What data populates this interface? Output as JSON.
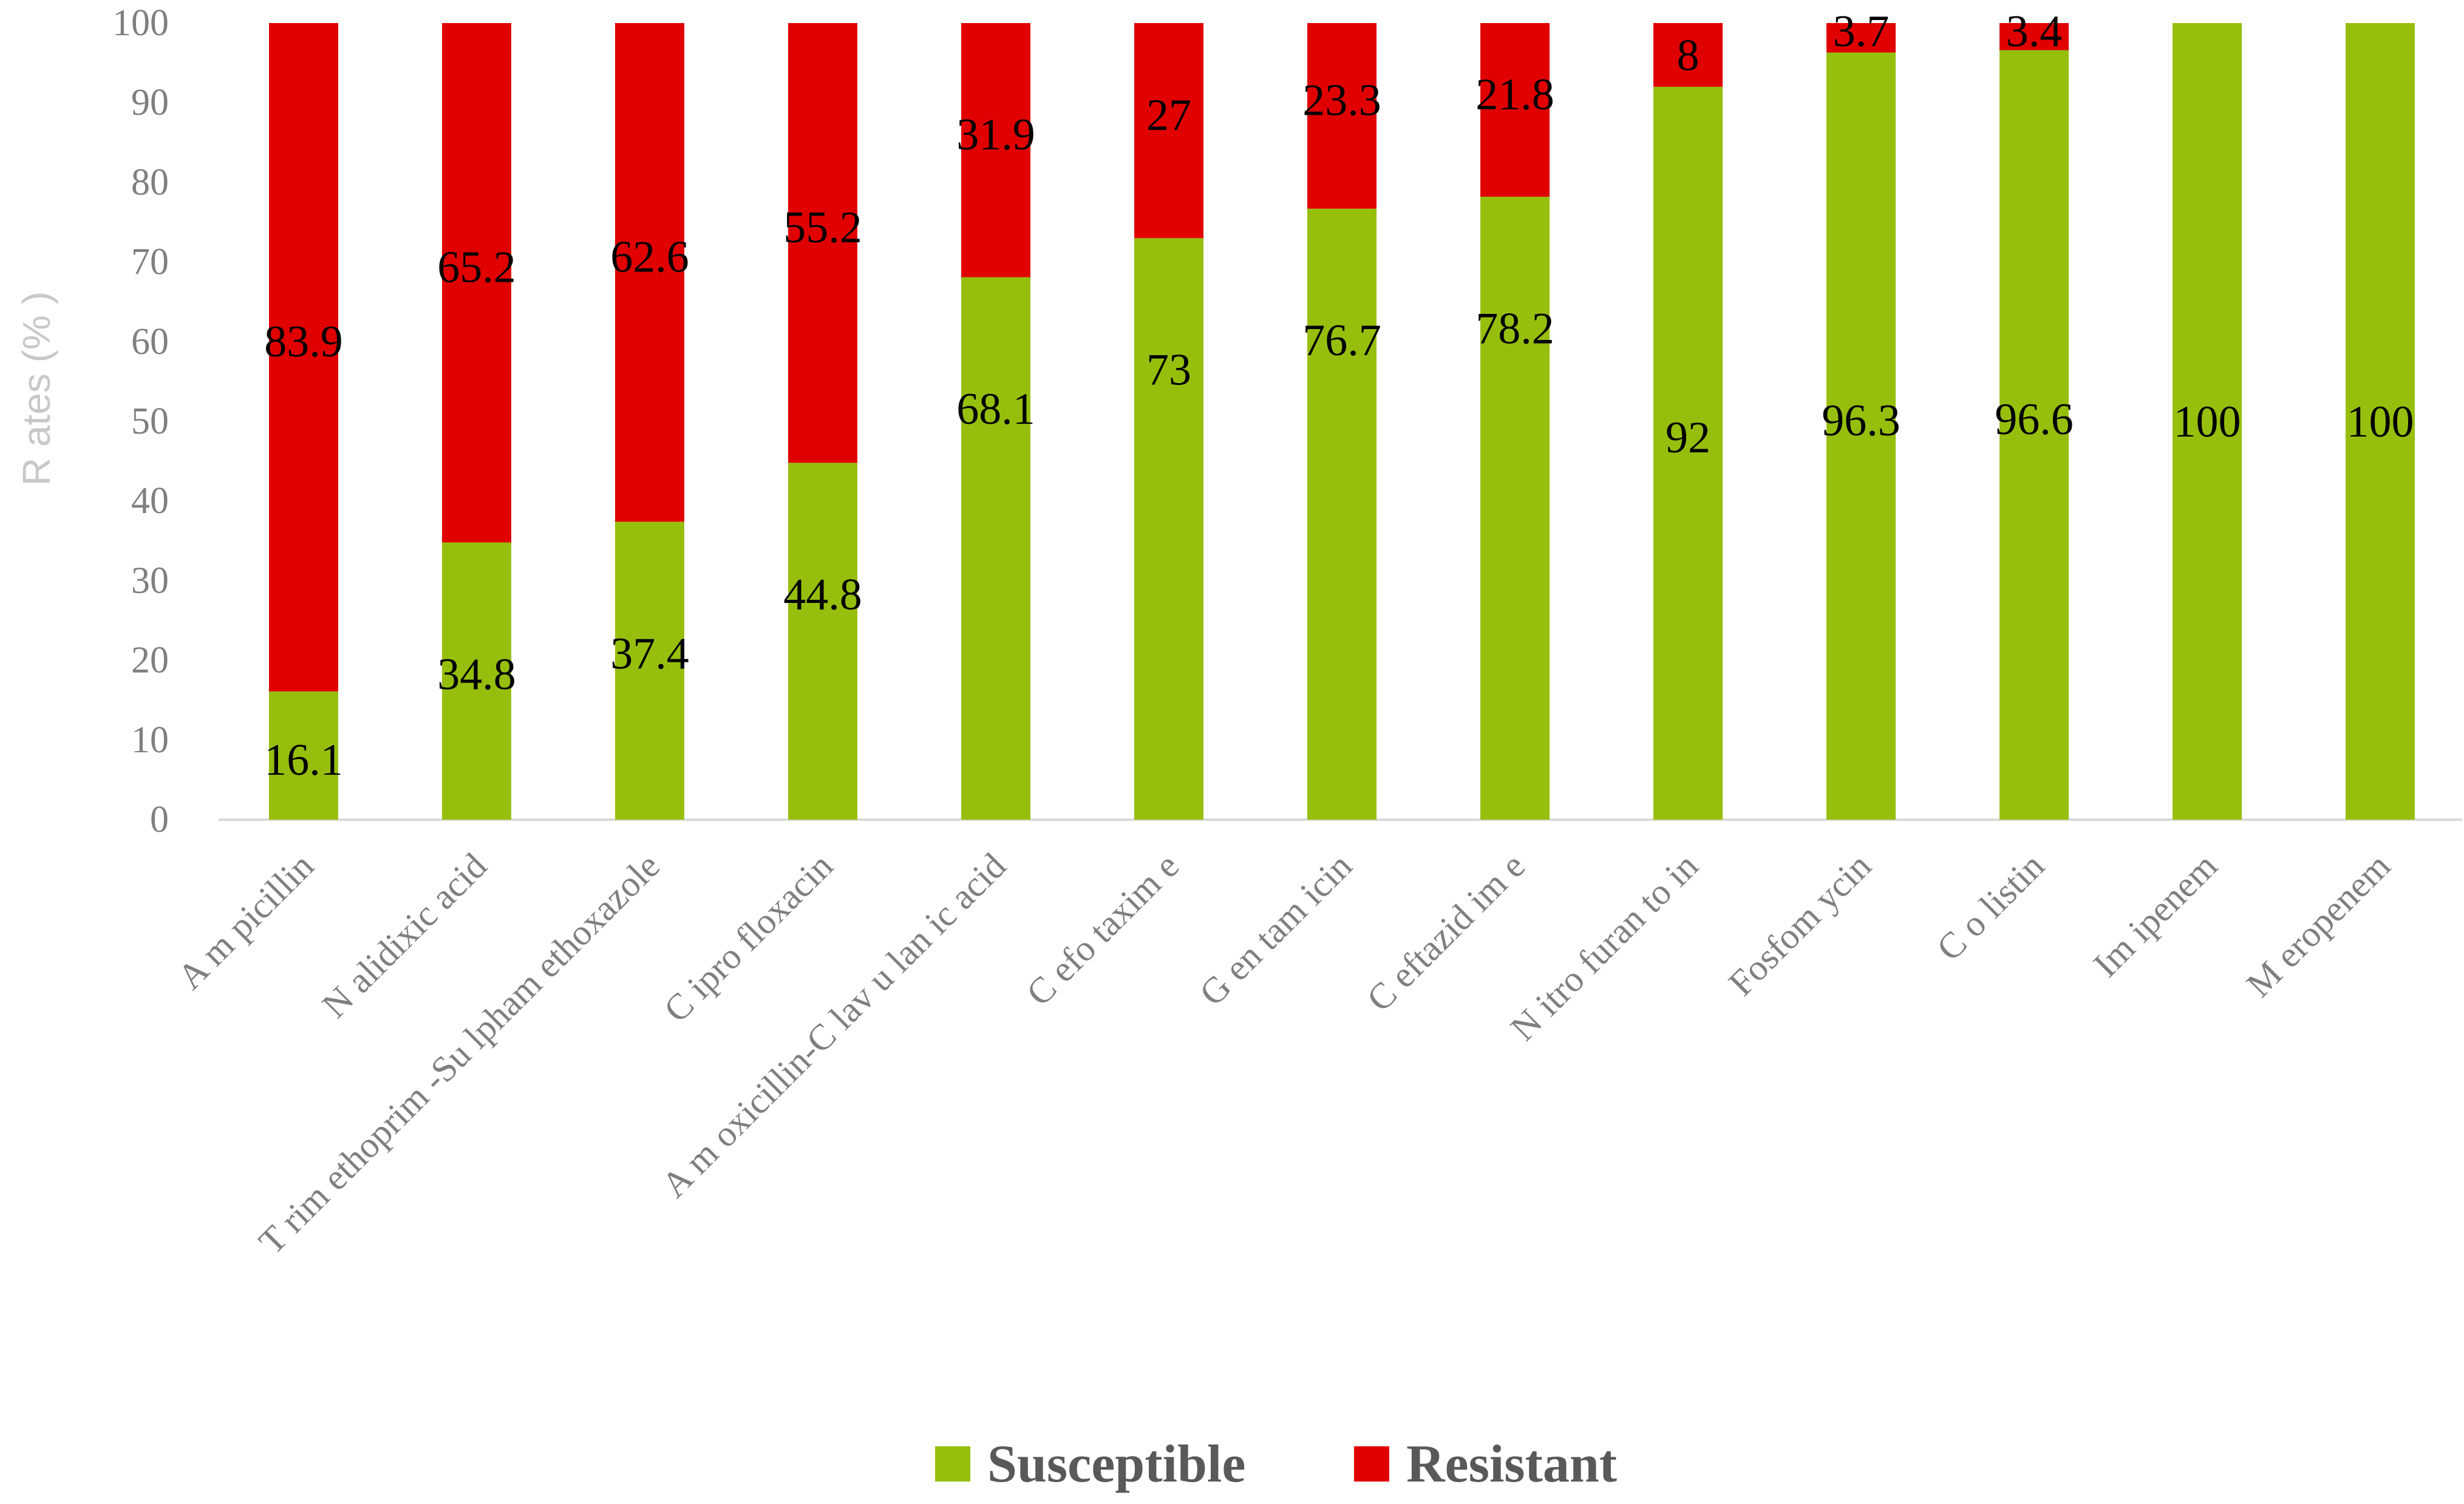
{
  "chart_data": {
    "type": "bar",
    "stacked": true,
    "categories": [
      "A m picillin",
      "N alidixic acid",
      "T rim ethoprim -Su lpham ethoxazole",
      "C ipro floxacin",
      "A m oxicillin-C lav u lan ic acid",
      "C efo taxim e",
      "G en tam icin",
      "C eftazid im e",
      "N itro furan to in",
      "Fosfom ycin",
      "C o listin",
      "Im ipenem",
      "M eropenem"
    ],
    "series": [
      {
        "name": "Susceptible",
        "color": "#96bf0d",
        "values": [
          16.1,
          34.8,
          37.4,
          44.8,
          68.1,
          73,
          76.7,
          78.2,
          92,
          96.3,
          96.6,
          100,
          100
        ]
      },
      {
        "name": "Resistant",
        "color": "#e00000",
        "values": [
          83.9,
          65.2,
          62.6,
          55.2,
          31.9,
          27,
          23.3,
          21.8,
          8,
          3.7,
          3.4,
          0,
          0
        ]
      }
    ],
    "ylabel": "R ates (% )",
    "xlabel": "",
    "title": "",
    "ylim": [
      0,
      100
    ],
    "yticks": [
      0,
      10,
      20,
      30,
      40,
      50,
      60,
      70,
      80,
      90,
      100
    ],
    "grid": false,
    "legend_position": "bottom"
  }
}
